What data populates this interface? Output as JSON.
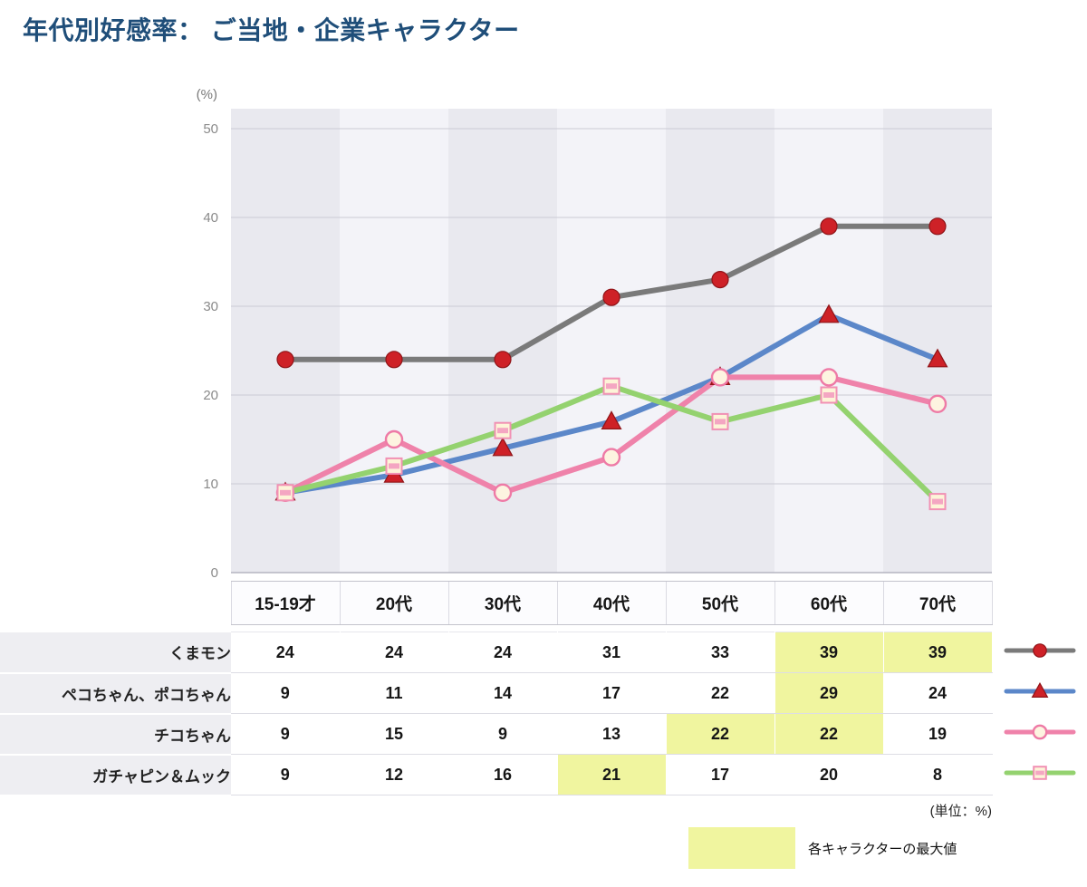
{
  "title": "年代別好感率： ご当地・企業キャラクター",
  "chart_data": {
    "type": "line",
    "title": "年代別好感率： ご当地・企業キャラクター",
    "y_unit": "(%)",
    "categories": [
      "15-19才",
      "20代",
      "30代",
      "40代",
      "50代",
      "60代",
      "70代"
    ],
    "ylim": [
      0,
      50
    ],
    "yticks": [
      0,
      10,
      20,
      30,
      40,
      50
    ],
    "grid": "horizontal",
    "legend_position": "right-of-table",
    "series": [
      {
        "name": "くまモン",
        "values": [
          24,
          24,
          24,
          31,
          33,
          39,
          39
        ],
        "line_color": "#7a7a7a",
        "marker": "circle",
        "marker_fill": "#ce2127",
        "marker_stroke": "#8f1418",
        "marker_stroke_width": 1.2
      },
      {
        "name": "ペコちゃん、ポコちゃん",
        "values": [
          9,
          11,
          14,
          17,
          22,
          29,
          24
        ],
        "line_color": "#5b87c9",
        "marker": "triangle",
        "marker_fill": "#ce2127",
        "marker_stroke": "#8f1418",
        "marker_stroke_width": 1.2
      },
      {
        "name": "チコちゃん",
        "values": [
          9,
          15,
          9,
          13,
          22,
          22,
          19
        ],
        "line_color": "#ef82aa",
        "marker": "circle",
        "marker_fill": "#fdf4e0",
        "marker_stroke": "#ee7aa6",
        "marker_stroke_width": 2.4
      },
      {
        "name": "ガチャピン＆ムック",
        "values": [
          9,
          12,
          16,
          21,
          17,
          20,
          8
        ],
        "line_color": "#94d26f",
        "marker": "square",
        "marker_fill": "#fdf4d8",
        "marker_stroke": "#f191b4",
        "marker_stroke_width": 2,
        "stripe_color": "#f4a6c2"
      }
    ],
    "max_highlights": [
      [
        5,
        6
      ],
      [
        5
      ],
      [
        4,
        5
      ],
      [
        3
      ]
    ]
  },
  "footnote_unit": "(単位：%)",
  "legend_note": "各キャラクターの最大値",
  "colors": {
    "title": "#1f4e79",
    "highlight": "#f0f59f",
    "band_dark": "#e9e9ef",
    "band_light": "#f3f3f8",
    "grid_line": "#cbcbd4",
    "zero_line": "#b6b6c0",
    "row_label_bg": "#eeeef2"
  }
}
